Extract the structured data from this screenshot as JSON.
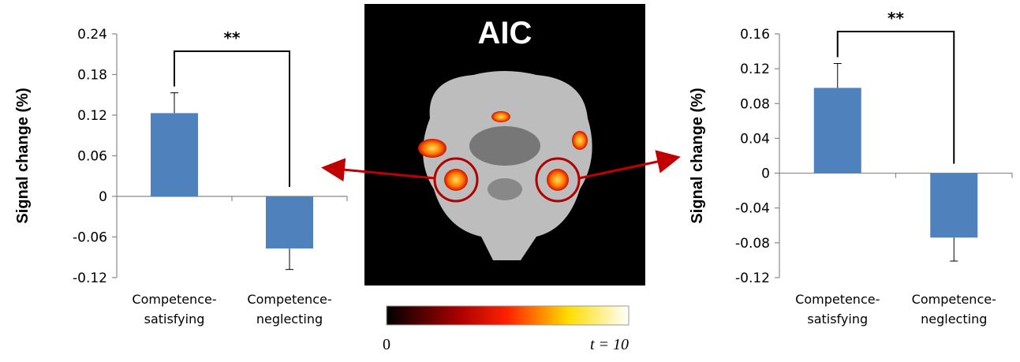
{
  "chart_data": [
    {
      "type": "bar",
      "y_label": "Signal change (%)",
      "categories": [
        "Competence-\nsatisfying",
        "Competence-\nneglecting"
      ],
      "values": [
        0.123,
        -0.077
      ],
      "errors": [
        0.03,
        0.031
      ],
      "color": "#4f81bd",
      "ylim": [
        -0.12,
        0.24
      ],
      "yticks": [
        -0.12,
        -0.06,
        0,
        0.06,
        0.12,
        0.18,
        0.24
      ],
      "significance": "**"
    },
    {
      "type": "bar",
      "y_label": "Signal change (%)",
      "categories": [
        "Competence-\nsatisfying",
        "Competence-\nneglecting"
      ],
      "values": [
        0.098,
        -0.074
      ],
      "errors": [
        0.028,
        0.027
      ],
      "color": "#4f81bd",
      "ylim": [
        -0.12,
        0.16
      ],
      "yticks": [
        -0.12,
        -0.08,
        -0.04,
        0,
        0.04,
        0.08,
        0.12,
        0.16
      ],
      "significance": "**"
    }
  ],
  "image": {
    "title": "AIC",
    "colorbar": {
      "ticks": [
        {
          "value": 0,
          "label": "0"
        },
        {
          "value": 10,
          "label": "t = 10"
        }
      ]
    }
  }
}
